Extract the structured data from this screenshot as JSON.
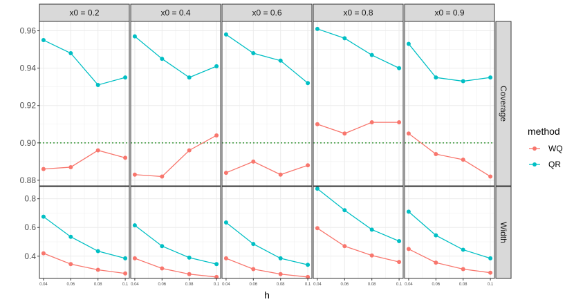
{
  "chart_data": {
    "type": "line",
    "xlabel": "h",
    "facet_columns": [
      "x0 = 0.2",
      "x0 = 0.4",
      "x0 = 0.6",
      "x0 = 0.8",
      "x0 = 0.9"
    ],
    "facet_rows": [
      "Coverage",
      "Width"
    ],
    "x": [
      0.04,
      0.06,
      0.08,
      0.1
    ],
    "x_tick_labels": [
      "0.04",
      "0.06",
      "0.08",
      "0.1"
    ],
    "legend": {
      "title": "method",
      "position": "right"
    },
    "colors": {
      "WQ": "#F8766D",
      "QR": "#00BFC4",
      "reference": "#228B22"
    },
    "grid": true,
    "rows": [
      {
        "name": "Coverage",
        "ylim": [
          0.877,
          0.965
        ],
        "y_ticks": [
          0.88,
          0.9,
          0.92,
          0.94,
          0.96
        ],
        "y_tick_labels": [
          "0.88",
          "0.90",
          "0.92",
          "0.94",
          "0.96"
        ],
        "reference_line": 0.9,
        "panels": [
          {
            "series": [
              {
                "name": "WQ",
                "values": [
                  0.886,
                  0.887,
                  0.896,
                  0.892
                ]
              },
              {
                "name": "QR",
                "values": [
                  0.955,
                  0.948,
                  0.931,
                  0.935
                ]
              }
            ]
          },
          {
            "series": [
              {
                "name": "WQ",
                "values": [
                  0.883,
                  0.882,
                  0.896,
                  0.904
                ]
              },
              {
                "name": "QR",
                "values": [
                  0.957,
                  0.945,
                  0.935,
                  0.941
                ]
              }
            ]
          },
          {
            "series": [
              {
                "name": "WQ",
                "values": [
                  0.884,
                  0.89,
                  0.883,
                  0.888
                ]
              },
              {
                "name": "QR",
                "values": [
                  0.958,
                  0.948,
                  0.944,
                  0.932
                ]
              }
            ]
          },
          {
            "series": [
              {
                "name": "WQ",
                "values": [
                  0.91,
                  0.905,
                  0.911,
                  0.911
                ]
              },
              {
                "name": "QR",
                "values": [
                  0.961,
                  0.956,
                  0.947,
                  0.94
                ]
              }
            ]
          },
          {
            "series": [
              {
                "name": "WQ",
                "values": [
                  0.905,
                  0.894,
                  0.891,
                  0.882
                ]
              },
              {
                "name": "QR",
                "values": [
                  0.953,
                  0.935,
                  0.933,
                  0.935
                ]
              }
            ]
          }
        ]
      },
      {
        "name": "Width",
        "ylim": [
          0.245,
          0.885
        ],
        "y_ticks": [
          0.4,
          0.6,
          0.8
        ],
        "y_tick_labels": [
          "0.4",
          "0.6",
          "0.8"
        ],
        "panels": [
          {
            "series": [
              {
                "name": "WQ",
                "values": [
                  0.42,
                  0.345,
                  0.305,
                  0.28
                ]
              },
              {
                "name": "QR",
                "values": [
                  0.675,
                  0.535,
                  0.435,
                  0.385
                ]
              }
            ]
          },
          {
            "series": [
              {
                "name": "WQ",
                "values": [
                  0.385,
                  0.315,
                  0.275,
                  0.255
                ]
              },
              {
                "name": "QR",
                "values": [
                  0.615,
                  0.47,
                  0.39,
                  0.345
                ]
              }
            ]
          },
          {
            "series": [
              {
                "name": "WQ",
                "values": [
                  0.385,
                  0.31,
                  0.275,
                  0.255
                ]
              },
              {
                "name": "QR",
                "values": [
                  0.635,
                  0.485,
                  0.385,
                  0.34
                ]
              }
            ]
          },
          {
            "series": [
              {
                "name": "WQ",
                "values": [
                  0.595,
                  0.47,
                  0.405,
                  0.36
                ]
              },
              {
                "name": "QR",
                "values": [
                  0.87,
                  0.72,
                  0.585,
                  0.505
                ]
              }
            ]
          },
          {
            "series": [
              {
                "name": "WQ",
                "values": [
                  0.45,
                  0.355,
                  0.31,
                  0.285
                ]
              },
              {
                "name": "QR",
                "values": [
                  0.71,
                  0.545,
                  0.445,
                  0.385
                ]
              }
            ]
          }
        ]
      }
    ]
  }
}
